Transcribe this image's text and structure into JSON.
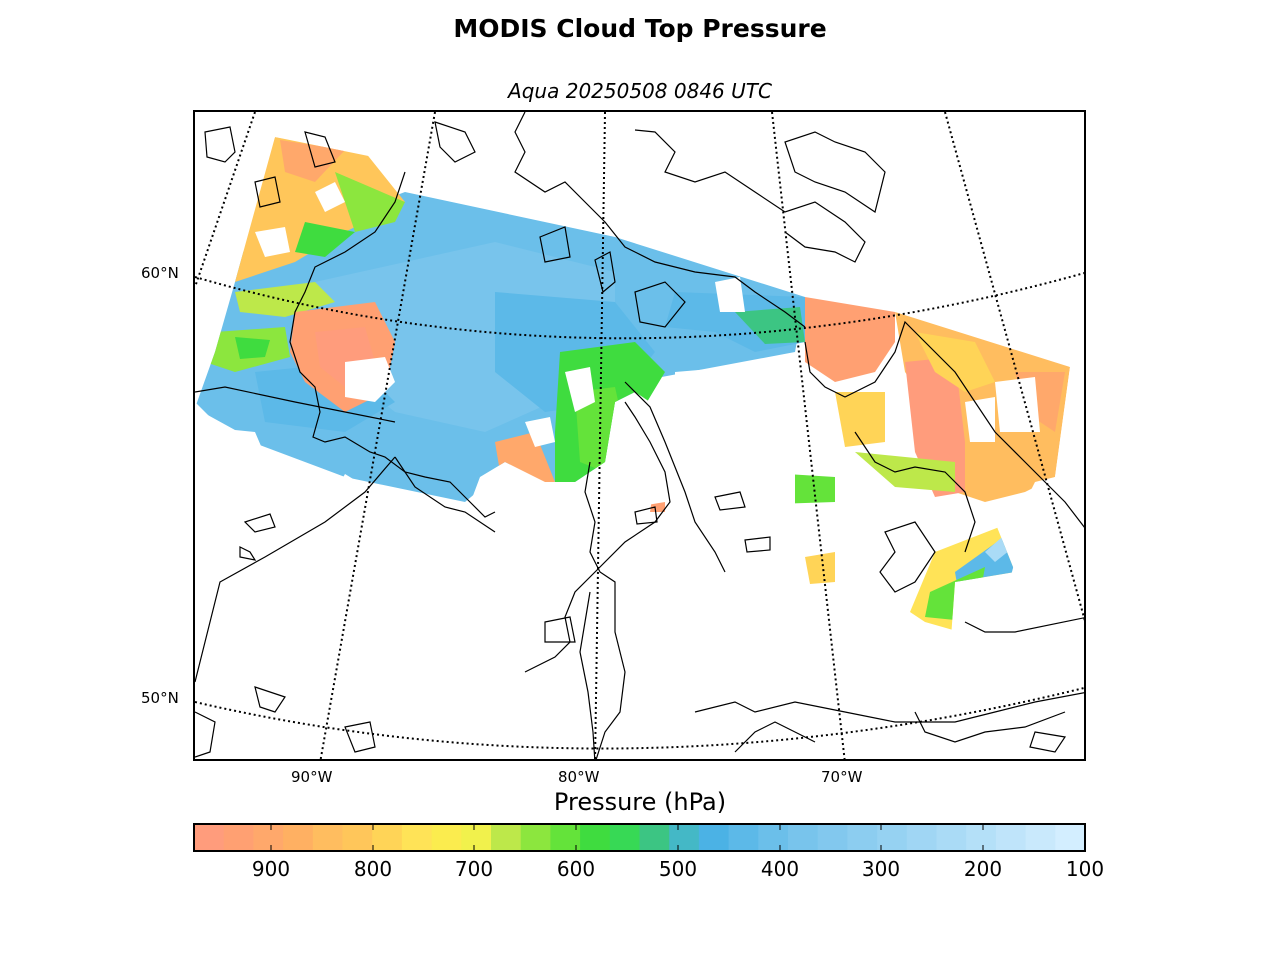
{
  "title": "MODIS Cloud Top Pressure",
  "subtitle": "Aqua 20250508 0846 UTC",
  "map": {
    "lat_labels": [
      "60°N",
      "50°N"
    ],
    "lon_labels": [
      "90°W",
      "80°W",
      "70°W"
    ]
  },
  "colorbar": {
    "label": "Pressure (hPa)",
    "tick_labels": [
      "900",
      "800",
      "700",
      "600",
      "500",
      "400",
      "300",
      "200",
      "100"
    ],
    "colors": [
      "#ff9c7c",
      "#ffa072",
      "#ffa86b",
      "#ffb062",
      "#ffbd5f",
      "#ffc65a",
      "#ffd457",
      "#ffe357",
      "#fbec4e",
      "#f1f14c",
      "#bde84a",
      "#8ce63e",
      "#64e33a",
      "#3fdc3f",
      "#37d955",
      "#3cc583",
      "#44b8c6",
      "#4bb2e5",
      "#5cb9e8",
      "#6bbfea",
      "#78c4ec",
      "#82c8ee",
      "#8ccdf0",
      "#96d2f2",
      "#a0d6f4",
      "#aadbf6",
      "#b4e0f8",
      "#bfe4fa",
      "#c9e9fc",
      "#d3eeff"
    ]
  }
}
